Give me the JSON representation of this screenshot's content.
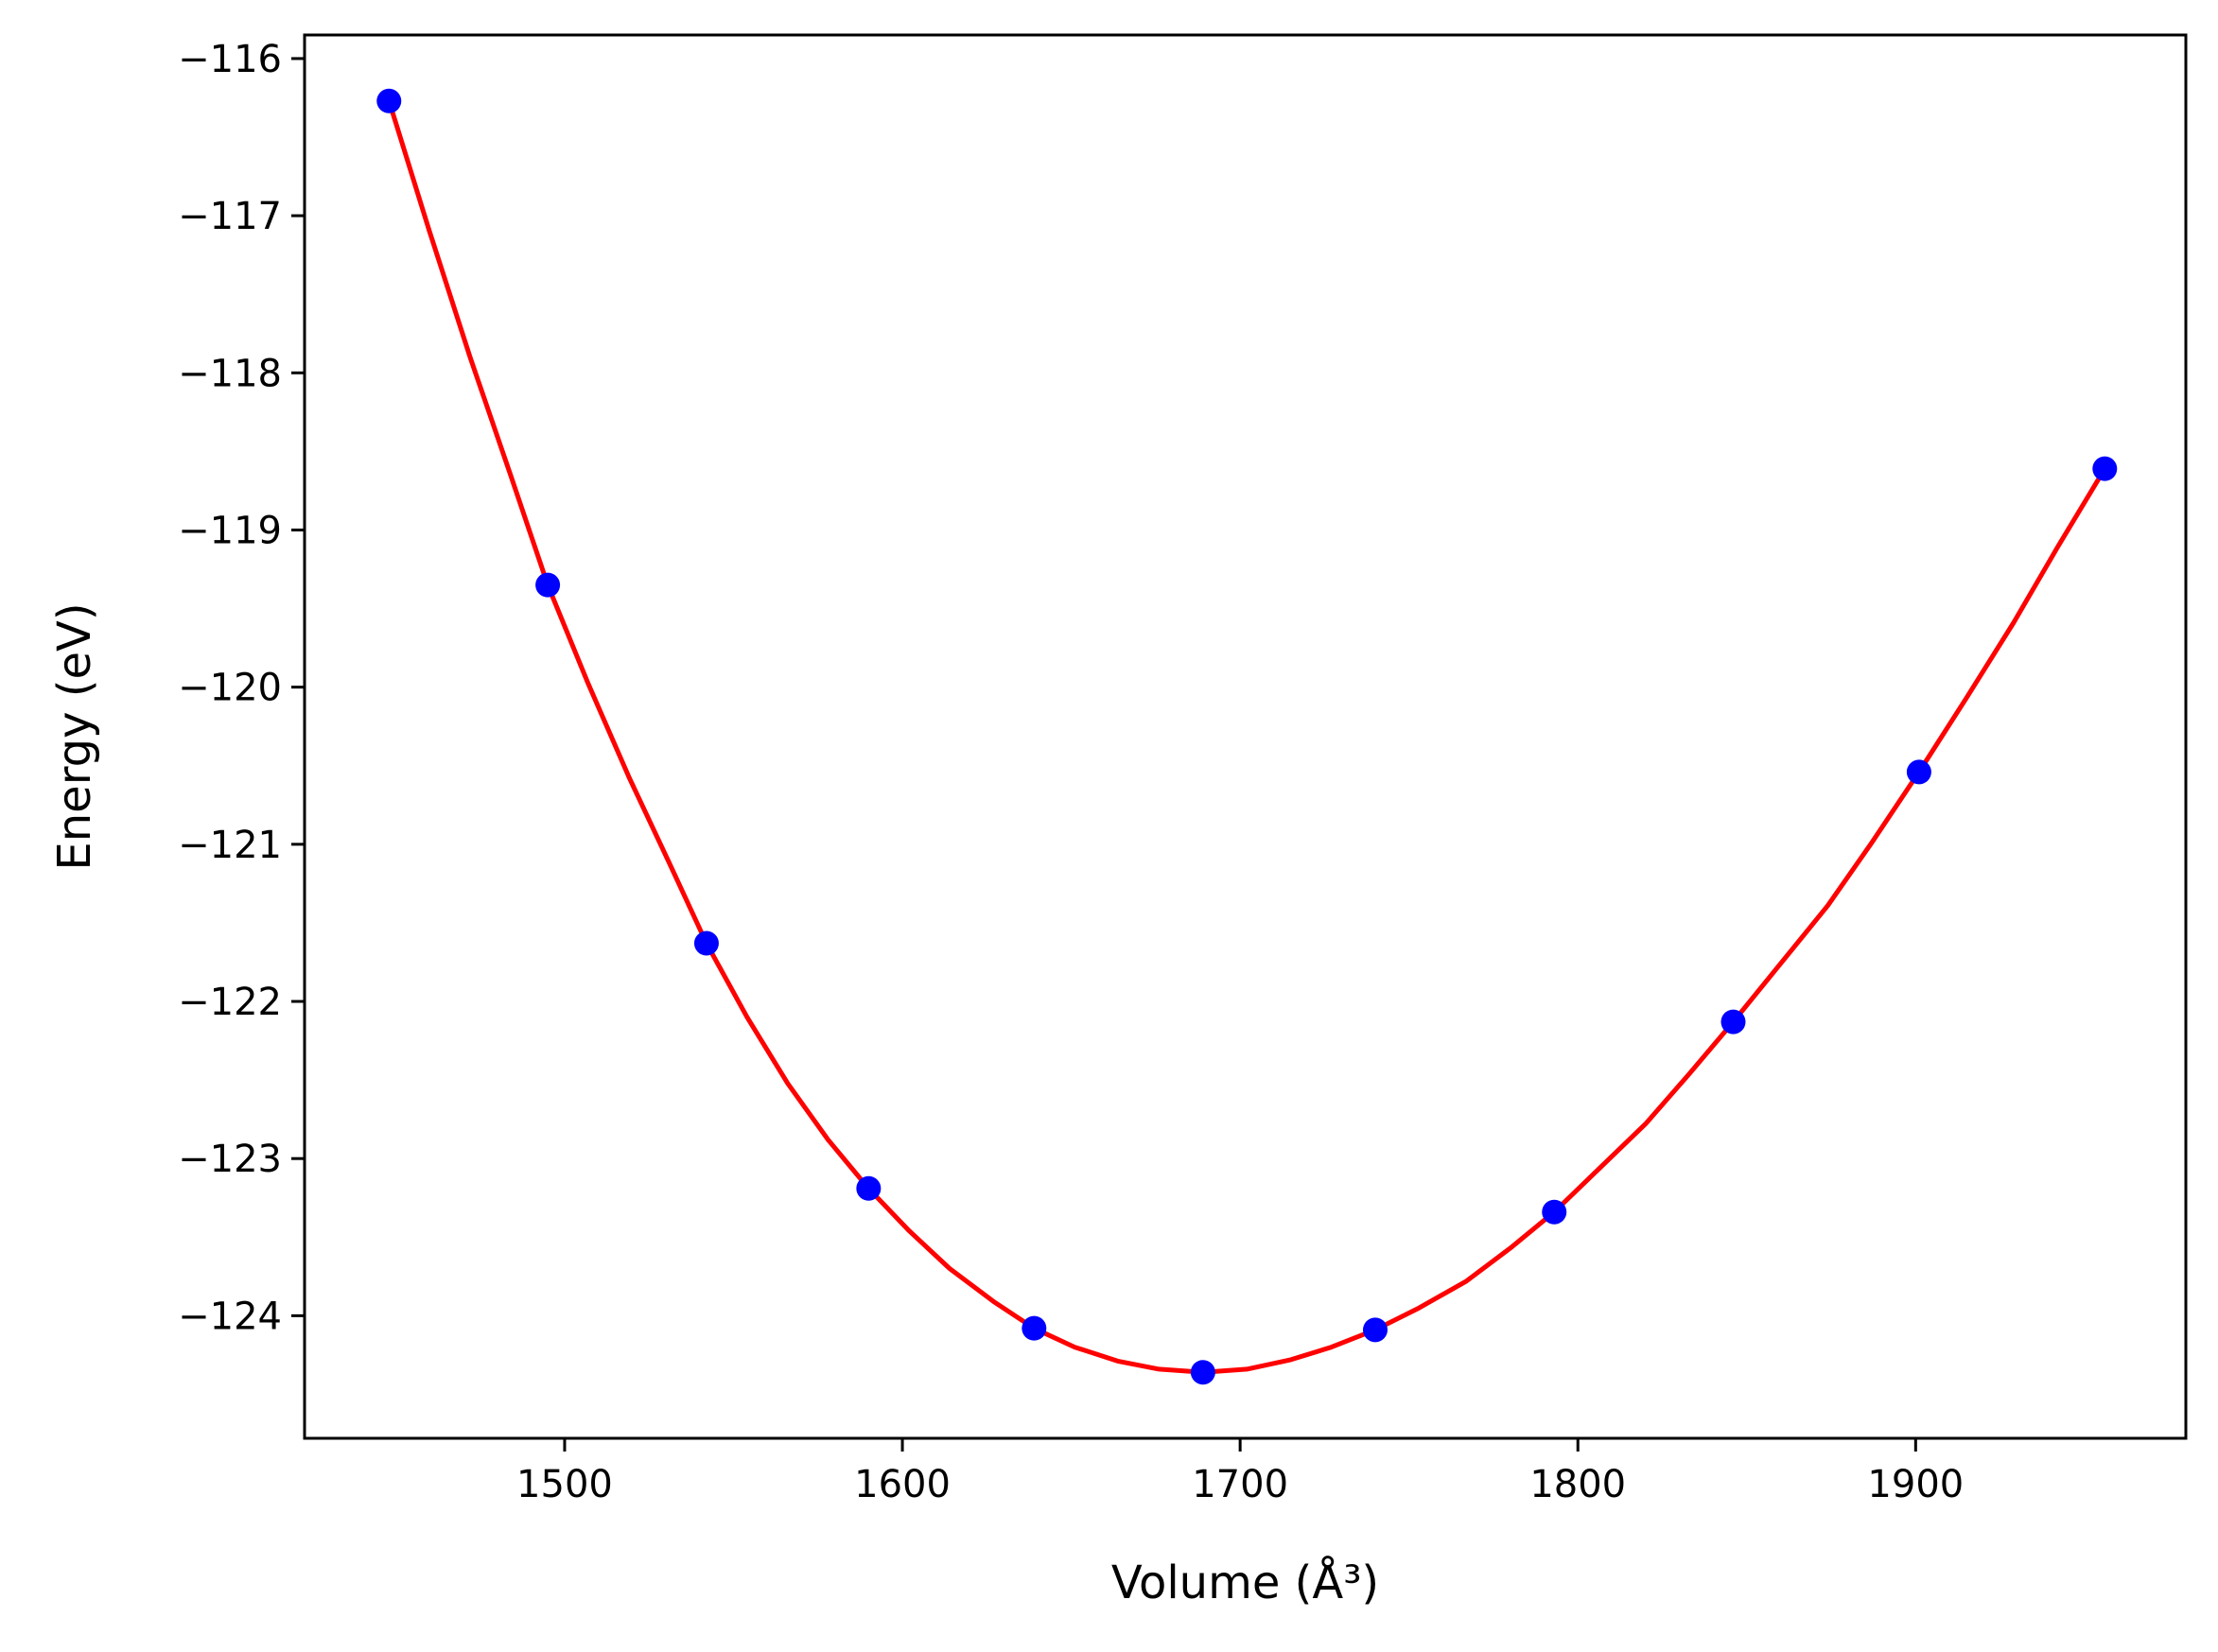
{
  "chart_data": {
    "type": "line",
    "title": "",
    "xlabel": "Volume (Å³)",
    "ylabel": "Energy (eV)",
    "xlim": [
      1423,
      1980
    ],
    "ylim": [
      -124.78,
      -115.85
    ],
    "x_ticks": [
      1500,
      1600,
      1700,
      1800,
      1900
    ],
    "y_ticks": [
      -116,
      -117,
      -118,
      -119,
      -120,
      -121,
      -122,
      -123,
      -124
    ],
    "x_tick_labels": [
      "1500",
      "1600",
      "1700",
      "1800",
      "1900"
    ],
    "y_tick_labels": [
      "−116",
      "−117",
      "−118",
      "−119",
      "−120",
      "−121",
      "−122",
      "−123",
      "−124"
    ],
    "grid": false,
    "series": [
      {
        "kind": "scatter",
        "color": "#0000ff",
        "x": [
          1448,
          1495,
          1542,
          1590,
          1639,
          1689,
          1740,
          1793,
          1846,
          1901,
          1956
        ],
        "y": [
          -116.27,
          -119.35,
          -121.63,
          -123.19,
          -124.08,
          -124.36,
          -124.09,
          -123.34,
          -122.13,
          -120.54,
          -118.61
        ]
      },
      {
        "kind": "line",
        "color": "#ff0000",
        "x": [
          1448,
          1460,
          1472,
          1484,
          1495,
          1507,
          1519,
          1531,
          1542,
          1554,
          1566,
          1578,
          1590,
          1602,
          1614,
          1627,
          1639,
          1651,
          1664,
          1676,
          1689,
          1702,
          1715,
          1727,
          1740,
          1753,
          1767,
          1780,
          1793,
          1806,
          1820,
          1833,
          1846,
          1860,
          1874,
          1887,
          1901,
          1915,
          1929,
          1942,
          1956
        ],
        "y": [
          -116.27,
          -117.1,
          -117.9,
          -118.65,
          -119.35,
          -119.98,
          -120.57,
          -121.12,
          -121.63,
          -122.1,
          -122.52,
          -122.88,
          -123.19,
          -123.46,
          -123.7,
          -123.91,
          -124.08,
          -124.2,
          -124.29,
          -124.34,
          -124.36,
          -124.34,
          -124.28,
          -124.2,
          -124.09,
          -123.95,
          -123.78,
          -123.57,
          -123.34,
          -123.07,
          -122.78,
          -122.46,
          -122.13,
          -121.76,
          -121.39,
          -120.99,
          -120.54,
          -120.07,
          -119.59,
          -119.11,
          -118.61
        ]
      }
    ]
  }
}
